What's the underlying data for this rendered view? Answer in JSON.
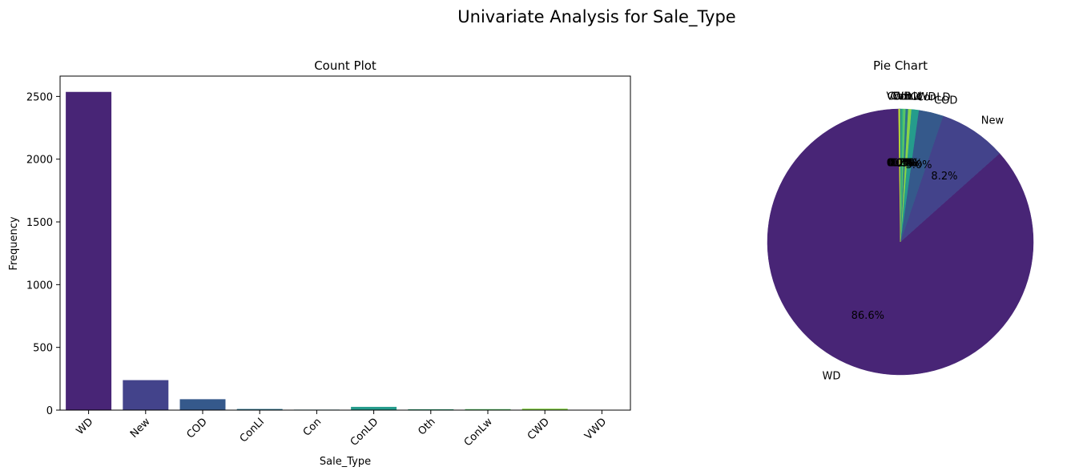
{
  "figure": {
    "title": "Univariate Analysis for Sale_Type"
  },
  "chart_data": [
    {
      "type": "bar",
      "title": "Count Plot",
      "xlabel": "Sale_Type",
      "ylabel": "Frequency",
      "categories": [
        "WD",
        "New",
        "COD",
        "ConLI",
        "Con",
        "ConLD",
        "Oth",
        "ConLw",
        "CWD",
        "VWD"
      ],
      "values": [
        2536,
        239,
        87,
        9,
        4,
        26,
        7,
        8,
        12,
        1
      ],
      "ylim": [
        0,
        2662
      ],
      "yticks": [
        0,
        500,
        1000,
        1500,
        2000,
        2500
      ],
      "colors": [
        "#482576",
        "#43438b",
        "#35598b",
        "#2b738e",
        "#22878d",
        "#259c8c",
        "#30b07e",
        "#56c566",
        "#89d448",
        "#c5e032"
      ],
      "grid": false
    },
    {
      "type": "pie",
      "title": "Pie Chart",
      "labels": [
        "WD",
        "New",
        "COD",
        "ConLD",
        "CWD",
        "ConLI",
        "ConLw",
        "Oth",
        "Con",
        "VWD"
      ],
      "values": [
        86.6,
        8.2,
        3.0,
        0.9,
        0.4,
        0.3,
        0.3,
        0.2,
        0.1,
        0.0
      ],
      "autopct": [
        "86.6%",
        "8.2%",
        "3.0%",
        "0.9%",
        "0.4%",
        "0.3%",
        "0.3%",
        "0.2%",
        "0.1%",
        "0.0%"
      ],
      "colors": [
        "#482576",
        "#43438b",
        "#35598b",
        "#259c8c",
        "#89d448",
        "#2b738e",
        "#56c566",
        "#30b07e",
        "#22878d",
        "#c5e032"
      ],
      "startangle": 90
    }
  ]
}
